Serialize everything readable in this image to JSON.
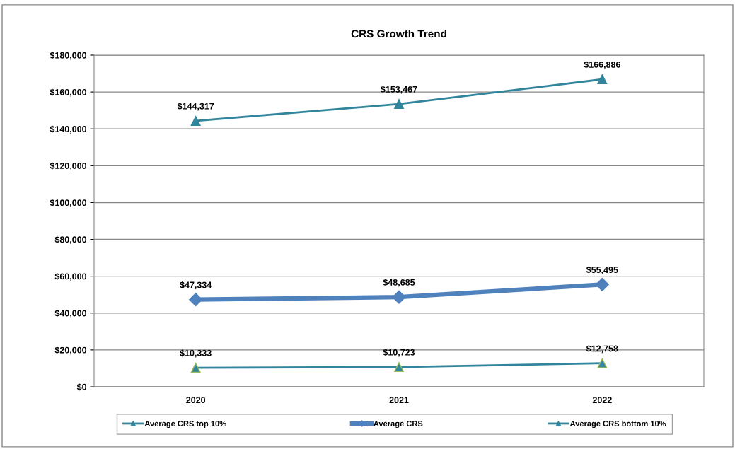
{
  "chart_data": {
    "type": "line",
    "title": "CRS Growth Trend",
    "categories": [
      "2020",
      "2021",
      "2022"
    ],
    "series": [
      {
        "name": "Average CRS top 10%",
        "color": "#31859c",
        "marker": "triangle",
        "values": [
          144317,
          153467,
          166886
        ],
        "value_labels": [
          "$144,317",
          "$153,467",
          "$166,886"
        ]
      },
      {
        "name": "Average CRS",
        "color": "#4f81bd",
        "marker": "diamond",
        "values": [
          47334,
          48685,
          55495
        ],
        "value_labels": [
          "$47,334",
          "$48,685",
          "$55,495"
        ]
      },
      {
        "name": "Average CRS bottom 10%",
        "color": "#31859c",
        "marker": "triangle",
        "values": [
          10333,
          10723,
          12758
        ],
        "value_labels": [
          "$10,333",
          "$10,723",
          "$12,758"
        ]
      }
    ],
    "ylim": [
      0,
      180000
    ],
    "yticks": [
      {
        "value": 0,
        "label": "$0"
      },
      {
        "value": 20000,
        "label": "$20,000"
      },
      {
        "value": 40000,
        "label": "$40,000"
      },
      {
        "value": 60000,
        "label": "$60,000"
      },
      {
        "value": 80000,
        "label": "$80,000"
      },
      {
        "value": 100000,
        "label": "$100,000"
      },
      {
        "value": 120000,
        "label": "$120,000"
      },
      {
        "value": 140000,
        "label": "$140,000"
      },
      {
        "value": 160000,
        "label": "$160,000"
      },
      {
        "value": 180000,
        "label": "$180,000"
      }
    ],
    "grid": "y",
    "legend": "bottom",
    "line_style": "solid"
  }
}
